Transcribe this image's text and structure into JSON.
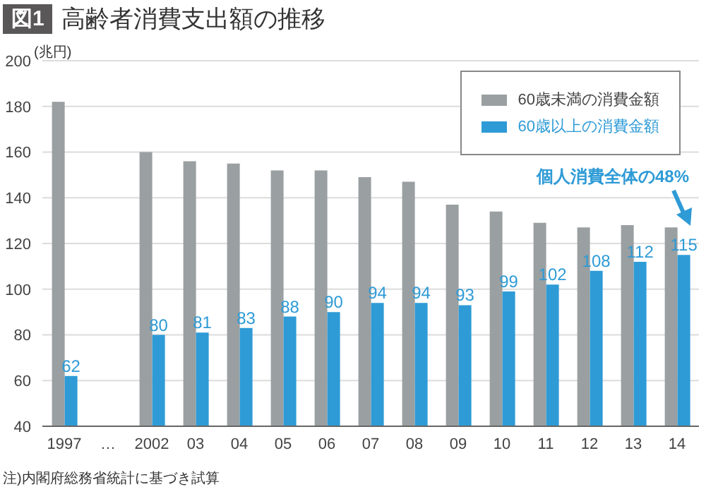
{
  "chart_data": {
    "type": "bar",
    "title": "高齢者消費支出額の推移",
    "ylabel": "(兆円)",
    "categories": [
      "1997",
      "…",
      "2002",
      "03",
      "04",
      "05",
      "06",
      "07",
      "08",
      "09",
      "10",
      "11",
      "12",
      "13",
      "14"
    ],
    "series": [
      {
        "name": "60歳未満の消費金額",
        "color": "#9a9fa1",
        "values": [
          182,
          null,
          160,
          156,
          155,
          152,
          152,
          149,
          147,
          137,
          134,
          129,
          127,
          128,
          127
        ]
      },
      {
        "name": "60歳以上の消費金額",
        "color": "#2e9bd6",
        "values": [
          62,
          null,
          80,
          81,
          83,
          88,
          90,
          94,
          94,
          93,
          99,
          102,
          108,
          112,
          115
        ],
        "value_labels": [
          "62",
          null,
          "80",
          "81",
          "83",
          "88",
          "90",
          "94",
          "94",
          "93",
          "99",
          "102",
          "108",
          "112",
          "115"
        ]
      }
    ],
    "ylim": [
      40,
      200
    ],
    "yticks": [
      40,
      60,
      80,
      100,
      120,
      140,
      160,
      180,
      200
    ],
    "grid": "y",
    "legend": "top right",
    "annotations": [
      "図1",
      "注)内閣府総務省統計に基づき試算",
      "個人消費全体の48%"
    ]
  }
}
